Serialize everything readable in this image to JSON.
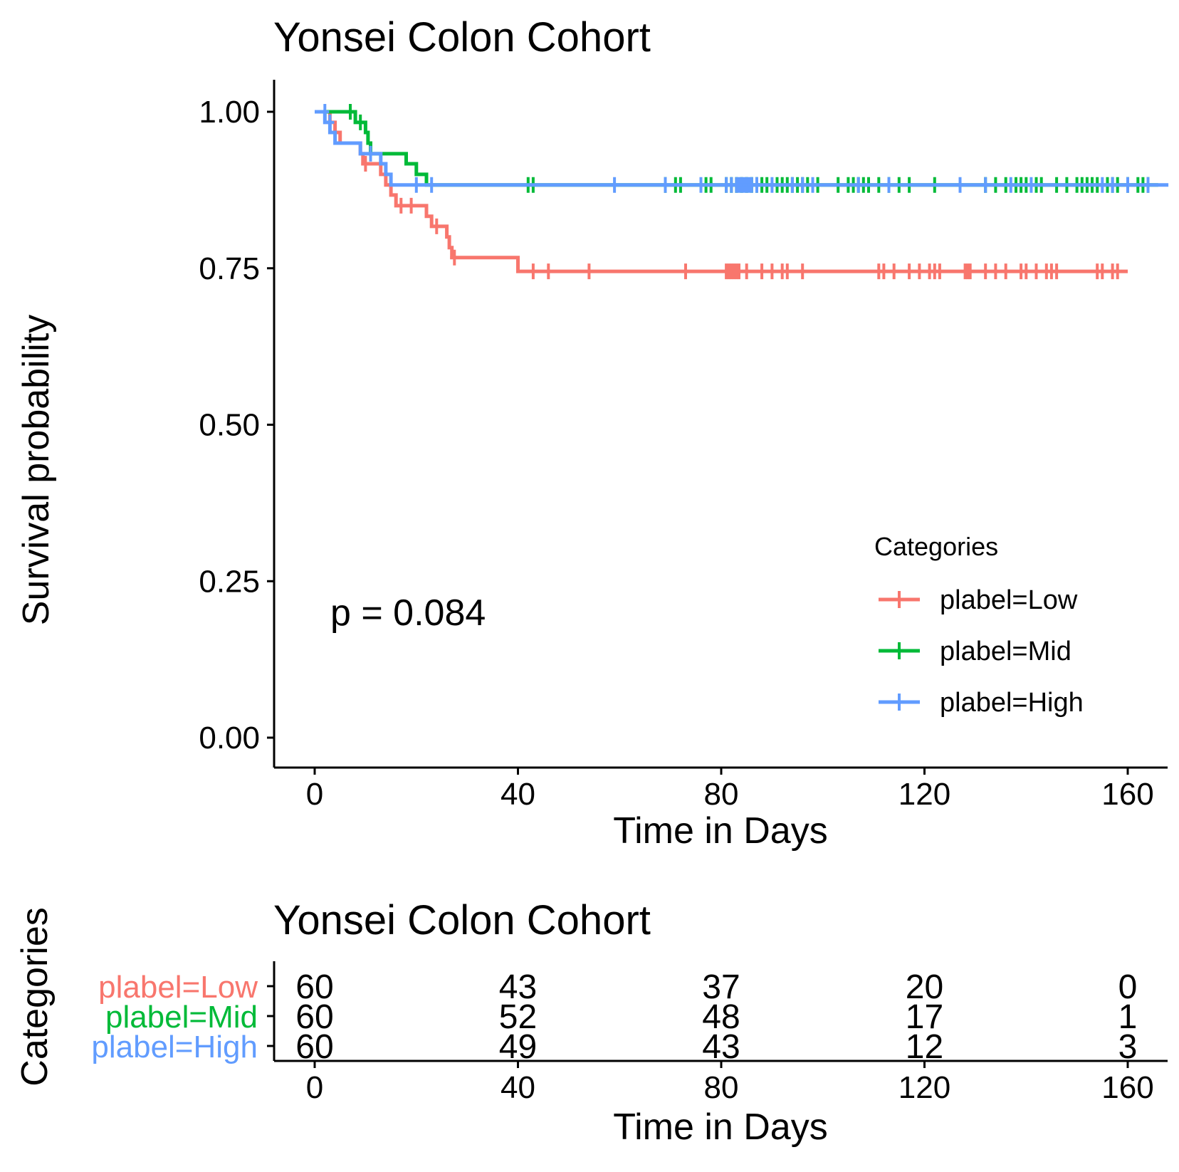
{
  "chart_data": [
    {
      "type": "line",
      "subtype": "kaplan-meier",
      "title": "Yonsei Colon Cohort",
      "xlabel": "Time in Days",
      "ylabel": "Survival probability",
      "xlim": [
        -10,
        168
      ],
      "ylim": [
        -0.05,
        1.05
      ],
      "x_ticks": [
        0,
        40,
        80,
        120,
        160
      ],
      "x_tick_labels": [
        "0",
        "40",
        "80",
        "120",
        "160"
      ],
      "y_ticks": [
        0,
        0.25,
        0.5,
        0.75,
        1.0
      ],
      "y_tick_labels": [
        "0.00",
        "0.25",
        "0.50",
        "0.75",
        "1.00"
      ],
      "grid": false,
      "annotation": "p = 0.084",
      "legend": {
        "title": "Categories",
        "position": "bottom-right"
      },
      "series": [
        {
          "name": "plabel=Low",
          "color": "#F8766D",
          "steps": [
            [
              0,
              1.0
            ],
            [
              3,
              0.983
            ],
            [
              4,
              0.967
            ],
            [
              5,
              0.95
            ],
            [
              9,
              0.933
            ],
            [
              9.5,
              0.917
            ],
            [
              13,
              0.9
            ],
            [
              14,
              0.883
            ],
            [
              15,
              0.867
            ],
            [
              16,
              0.85
            ],
            [
              22,
              0.833
            ],
            [
              23,
              0.817
            ],
            [
              26,
              0.8
            ],
            [
              26.5,
              0.783
            ],
            [
              27,
              0.767
            ],
            [
              40,
              0.745
            ],
            [
              160,
              0.745
            ]
          ],
          "censors": [
            [
              4,
              0.967
            ],
            [
              10,
              0.917
            ],
            [
              17,
              0.85
            ],
            [
              19,
              0.85
            ],
            [
              24,
              0.817
            ],
            [
              27.5,
              0.767
            ],
            [
              43,
              0.745
            ],
            [
              46,
              0.745
            ],
            [
              54,
              0.745
            ],
            [
              73,
              0.745
            ],
            [
              81,
              0.745
            ],
            [
              81.5,
              0.745
            ],
            [
              82,
              0.745
            ],
            [
              82.5,
              0.745
            ],
            [
              83,
              0.745
            ],
            [
              83.5,
              0.745
            ],
            [
              85,
              0.745
            ],
            [
              88,
              0.745
            ],
            [
              90,
              0.745
            ],
            [
              92,
              0.745
            ],
            [
              93,
              0.745
            ],
            [
              96,
              0.745
            ],
            [
              111,
              0.745
            ],
            [
              112,
              0.745
            ],
            [
              114,
              0.745
            ],
            [
              117,
              0.745
            ],
            [
              119,
              0.745
            ],
            [
              121,
              0.745
            ],
            [
              122,
              0.745
            ],
            [
              123,
              0.745
            ],
            [
              128,
              0.745
            ],
            [
              128.5,
              0.745
            ],
            [
              129,
              0.745
            ],
            [
              132,
              0.745
            ],
            [
              134,
              0.745
            ],
            [
              136,
              0.745
            ],
            [
              139,
              0.745
            ],
            [
              140,
              0.745
            ],
            [
              142,
              0.745
            ],
            [
              144,
              0.745
            ],
            [
              145,
              0.745
            ],
            [
              146,
              0.745
            ],
            [
              154,
              0.745
            ],
            [
              155,
              0.745
            ],
            [
              157,
              0.745
            ],
            [
              158,
              0.745
            ]
          ]
        },
        {
          "name": "plabel=Mid",
          "color": "#00BA38",
          "steps": [
            [
              0,
              1.0
            ],
            [
              8,
              0.983
            ],
            [
              10,
              0.967
            ],
            [
              10.5,
              0.95
            ],
            [
              11,
              0.933
            ],
            [
              18,
              0.917
            ],
            [
              20,
              0.9
            ],
            [
              22,
              0.883
            ],
            [
              166,
              0.883
            ]
          ],
          "censors": [
            [
              7,
              1.0
            ],
            [
              9,
              0.983
            ],
            [
              42,
              0.883
            ],
            [
              43,
              0.883
            ],
            [
              69,
              0.883
            ],
            [
              71,
              0.883
            ],
            [
              72,
              0.883
            ],
            [
              77,
              0.883
            ],
            [
              78,
              0.883
            ],
            [
              81,
              0.883
            ],
            [
              82,
              0.883
            ],
            [
              83,
              0.883
            ],
            [
              84,
              0.883
            ],
            [
              85,
              0.883
            ],
            [
              86,
              0.883
            ],
            [
              87,
              0.883
            ],
            [
              88,
              0.883
            ],
            [
              89,
              0.883
            ],
            [
              91,
              0.883
            ],
            [
              92,
              0.883
            ],
            [
              93,
              0.883
            ],
            [
              94,
              0.883
            ],
            [
              95,
              0.883
            ],
            [
              96,
              0.883
            ],
            [
              97,
              0.883
            ],
            [
              99,
              0.883
            ],
            [
              103,
              0.883
            ],
            [
              105,
              0.883
            ],
            [
              106,
              0.883
            ],
            [
              107,
              0.883
            ],
            [
              108,
              0.883
            ],
            [
              109,
              0.883
            ],
            [
              111,
              0.883
            ],
            [
              113,
              0.883
            ],
            [
              115,
              0.883
            ],
            [
              117,
              0.883
            ],
            [
              122,
              0.883
            ],
            [
              132,
              0.883
            ],
            [
              134,
              0.883
            ],
            [
              136,
              0.883
            ],
            [
              138,
              0.883
            ],
            [
              139,
              0.883
            ],
            [
              140,
              0.883
            ],
            [
              142,
              0.883
            ],
            [
              143,
              0.883
            ],
            [
              146,
              0.883
            ],
            [
              148,
              0.883
            ],
            [
              150,
              0.883
            ],
            [
              151,
              0.883
            ],
            [
              152,
              0.883
            ],
            [
              153,
              0.883
            ],
            [
              154,
              0.883
            ],
            [
              156,
              0.883
            ],
            [
              157,
              0.883
            ],
            [
              158,
              0.883
            ],
            [
              160,
              0.883
            ],
            [
              162,
              0.883
            ],
            [
              163,
              0.883
            ],
            [
              164,
              0.883
            ]
          ]
        },
        {
          "name": "plabel=High",
          "color": "#619CFF",
          "steps": [
            [
              0,
              1.0
            ],
            [
              2,
              0.983
            ],
            [
              3,
              0.967
            ],
            [
              4,
              0.95
            ],
            [
              9,
              0.933
            ],
            [
              13,
              0.917
            ],
            [
              14,
              0.9
            ],
            [
              15,
              0.883
            ],
            [
              168,
              0.883
            ]
          ],
          "censors": [
            [
              2,
              1.0
            ],
            [
              3,
              0.983
            ],
            [
              11,
              0.933
            ],
            [
              20,
              0.883
            ],
            [
              23,
              0.883
            ],
            [
              59,
              0.883
            ],
            [
              69,
              0.883
            ],
            [
              76,
              0.883
            ],
            [
              81,
              0.883
            ],
            [
              82,
              0.883
            ],
            [
              83,
              0.883
            ],
            [
              83.5,
              0.883
            ],
            [
              84,
              0.883
            ],
            [
              84.5,
              0.883
            ],
            [
              85,
              0.883
            ],
            [
              85.5,
              0.883
            ],
            [
              86,
              0.883
            ],
            [
              87,
              0.883
            ],
            [
              90,
              0.883
            ],
            [
              94,
              0.883
            ],
            [
              96,
              0.883
            ],
            [
              98,
              0.883
            ],
            [
              107,
              0.883
            ],
            [
              113,
              0.883
            ],
            [
              127,
              0.883
            ],
            [
              132,
              0.883
            ],
            [
              137,
              0.883
            ],
            [
              141,
              0.883
            ],
            [
              155,
              0.883
            ],
            [
              157,
              0.883
            ],
            [
              160,
              0.883
            ],
            [
              164,
              0.883
            ]
          ]
        }
      ]
    },
    {
      "type": "table",
      "subtype": "risk-table",
      "title": "Yonsei Colon Cohort",
      "xlabel": "Time in Days",
      "ylabel": "Categories",
      "x_ticks": [
        0,
        40,
        80,
        120,
        160
      ],
      "x_tick_labels": [
        "0",
        "40",
        "80",
        "120",
        "160"
      ],
      "rows": [
        {
          "name": "plabel=Low",
          "color": "#F8766D",
          "values": [
            "60",
            "43",
            "37",
            "20",
            "0"
          ]
        },
        {
          "name": "plabel=Mid",
          "color": "#00BA38",
          "values": [
            "60",
            "52",
            "48",
            "17",
            "1"
          ]
        },
        {
          "name": "plabel=High",
          "color": "#619CFF",
          "values": [
            "60",
            "49",
            "43",
            "12",
            "3"
          ]
        }
      ]
    }
  ]
}
